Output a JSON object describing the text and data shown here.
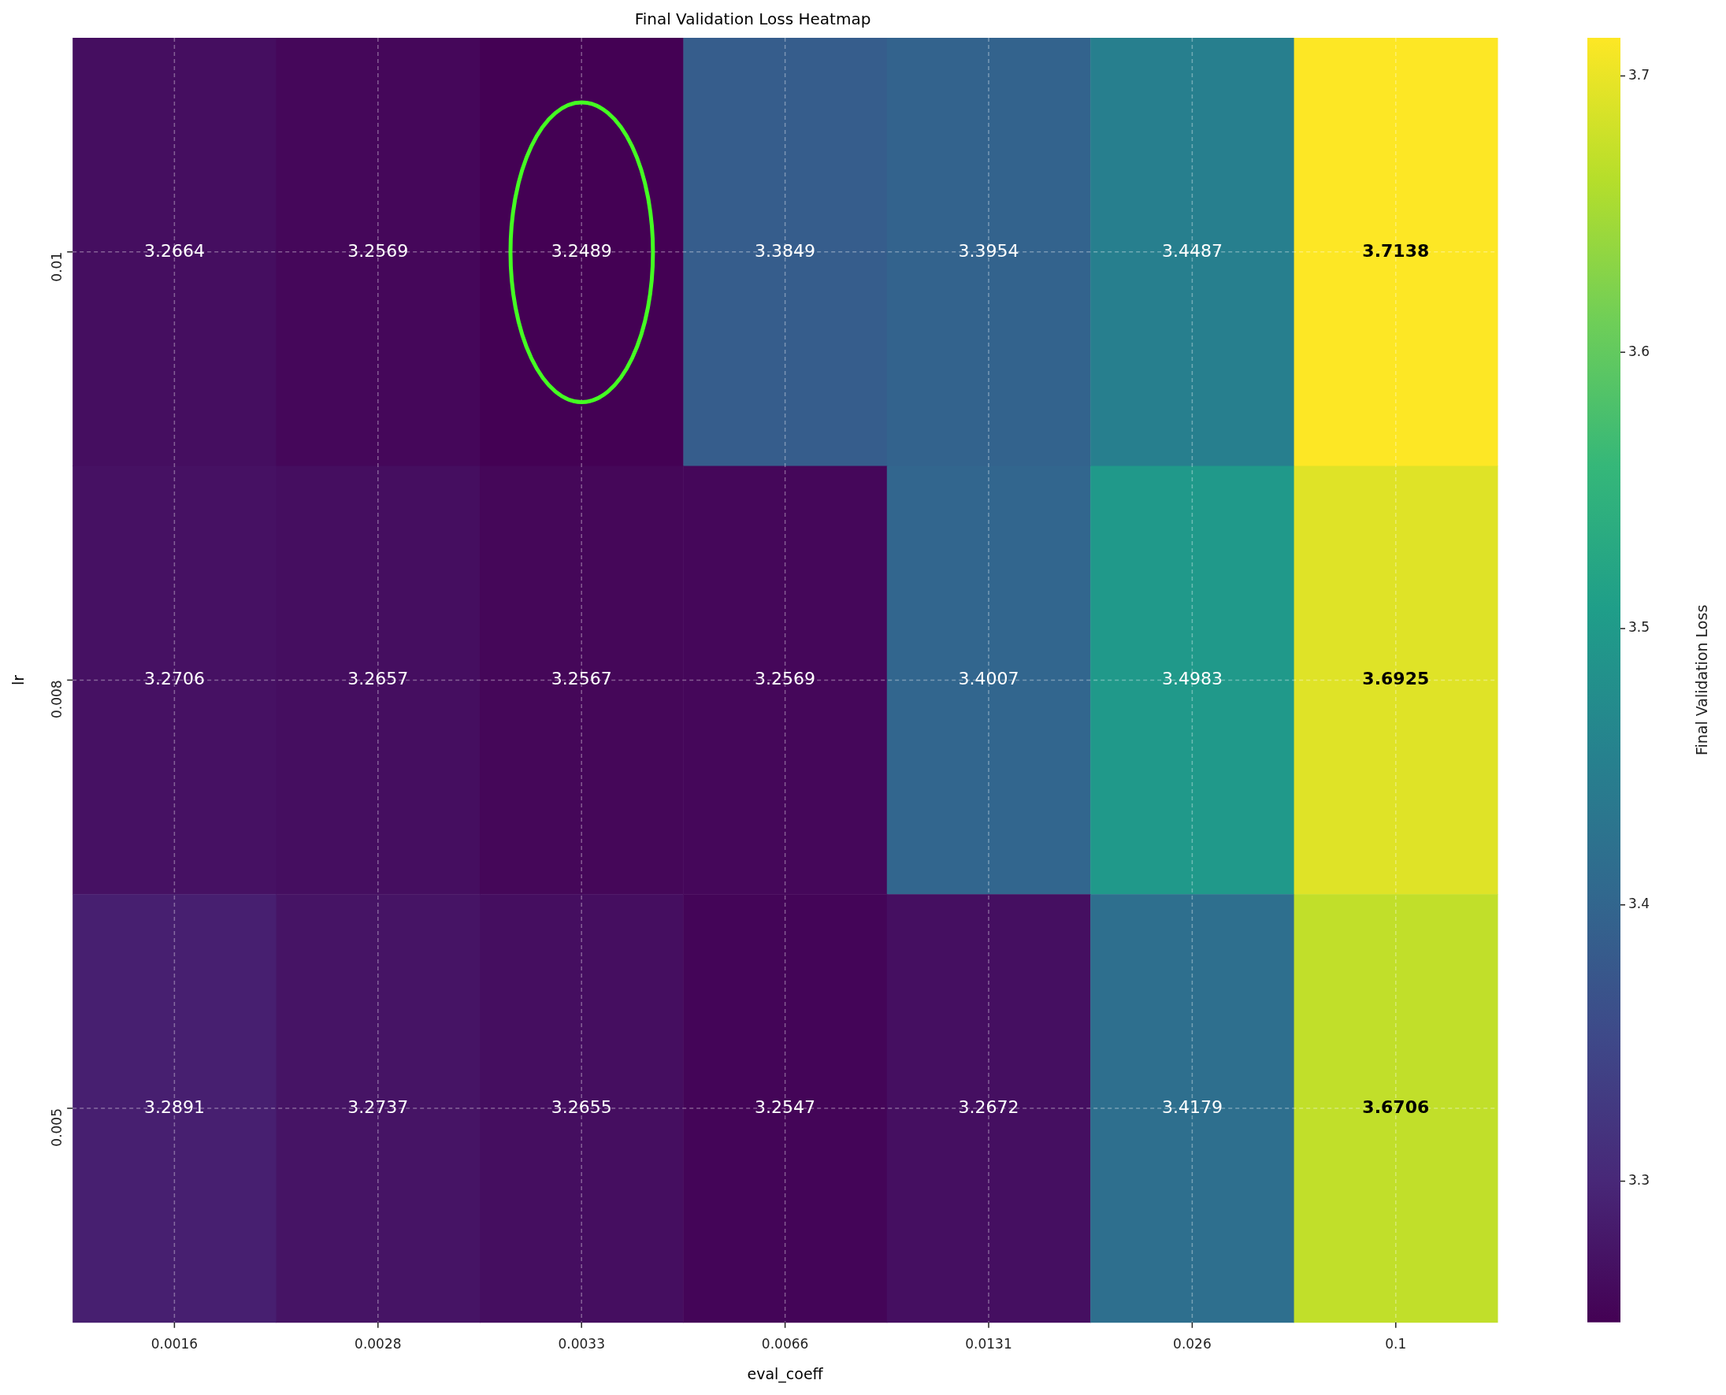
{
  "chart_data": {
    "type": "heatmap",
    "title": "Final Validation Loss Heatmap",
    "xlabel": "eval_coeff",
    "ylabel": "lr",
    "clabel": "Final Validation Loss",
    "categories": [
      "0.0016",
      "0.0028",
      "0.0033",
      "0.0066",
      "0.0131",
      "0.026",
      "0.1"
    ],
    "y_categories": [
      "0.01",
      "0.008",
      "0.005"
    ],
    "cells": [
      [
        3.2664,
        3.2569,
        3.2489,
        3.3849,
        3.3954,
        3.4487,
        3.7138
      ],
      [
        3.2706,
        3.2657,
        3.2567,
        3.2569,
        3.4007,
        3.4983,
        3.6925
      ],
      [
        3.2891,
        3.2737,
        3.2655,
        3.2547,
        3.2672,
        3.4179,
        3.6706
      ]
    ],
    "clim": [
      3.2489,
      3.7138
    ],
    "cticks": [
      3.3,
      3.4,
      3.5,
      3.6,
      3.7
    ],
    "data_labels": true,
    "grid": true
  }
}
